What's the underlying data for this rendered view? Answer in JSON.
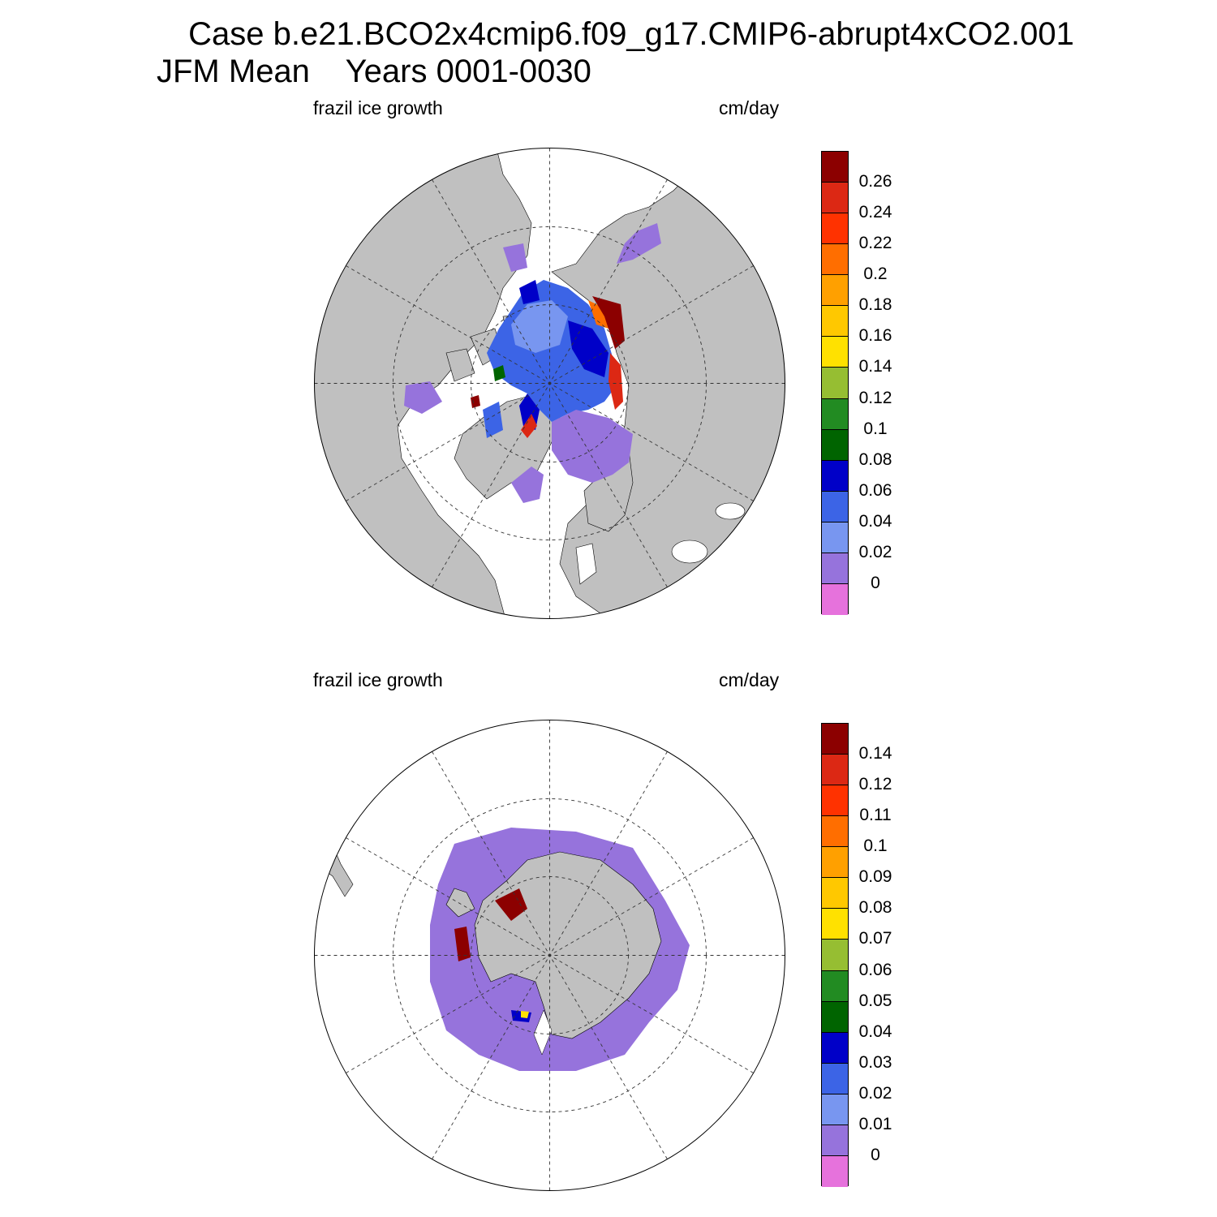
{
  "title": {
    "line1": "Case b.e21.BCO2x4cmip6.f09_g17.CMIP6-abrupt4xCO2.001",
    "line2": "JFM Mean    Years 0001-0030"
  },
  "colors": {
    "land": "#c0c0c0",
    "no_ice": "#ffffff",
    "palette": [
      "#e672dc",
      "#9673dc",
      "#7896f0",
      "#3c64e6",
      "#0000c8",
      "#006400",
      "#228b22",
      "#96be32",
      "#ffe100",
      "#ffc800",
      "#ffa000",
      "#ff6e00",
      "#ff3200",
      "#dc2814",
      "#8c0000"
    ]
  },
  "panels": [
    {
      "id": "north",
      "variable_label": "frazil ice growth",
      "units_label": "cm/day",
      "hemisphere": "Northern",
      "colorbar_levels": [
        "0",
        "0.02",
        "0.04",
        "0.06",
        "0.08",
        "0.1",
        "0.12",
        "0.14",
        "0.16",
        "0.18",
        "0.2",
        "0.22",
        "0.24",
        "0.26"
      ]
    },
    {
      "id": "south",
      "variable_label": "frazil ice growth",
      "units_label": "cm/day",
      "hemisphere": "Southern",
      "colorbar_levels": [
        "0",
        "0.01",
        "0.02",
        "0.03",
        "0.04",
        "0.05",
        "0.06",
        "0.07",
        "0.08",
        "0.09",
        "0.1",
        "0.11",
        "0.12",
        "0.14"
      ]
    }
  ]
}
